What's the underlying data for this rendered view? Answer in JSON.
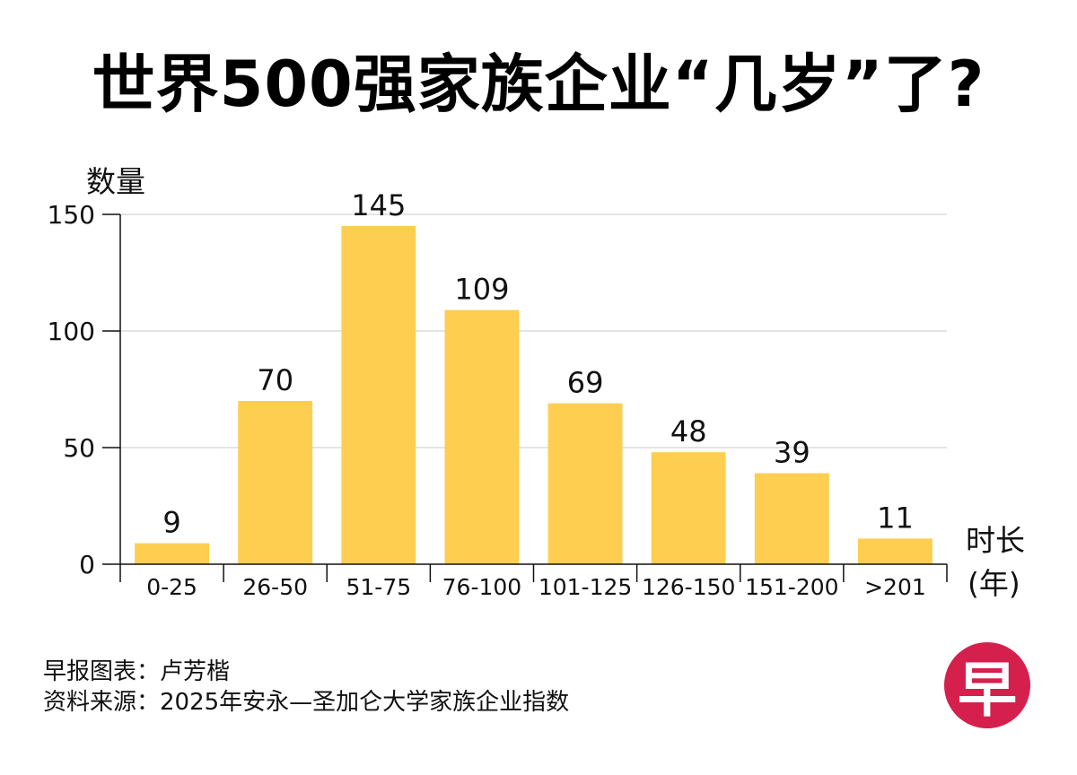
{
  "chart_data": {
    "type": "bar",
    "title": "世界500强家族企业“几岁”了?",
    "ylabel": "数量",
    "xlabel_line1": "时长",
    "xlabel_line2": "(年)",
    "categories": [
      "0-25",
      "26-50",
      "51-75",
      "76-100",
      "101-125",
      "126-150",
      "151-200",
      ">201"
    ],
    "values": [
      9,
      70,
      145,
      109,
      69,
      48,
      39,
      11
    ],
    "yticks": [
      0,
      50,
      100,
      150
    ],
    "ylim": [
      0,
      150
    ],
    "grid": true,
    "bar_color": "#FDCE4F"
  },
  "credits": {
    "line1": "早报图表：卢芳楷",
    "line2": "资料来源：2025年安永—圣加仑大学家族企业指数"
  },
  "logo": {
    "char": "早",
    "color": "#D5204E"
  }
}
